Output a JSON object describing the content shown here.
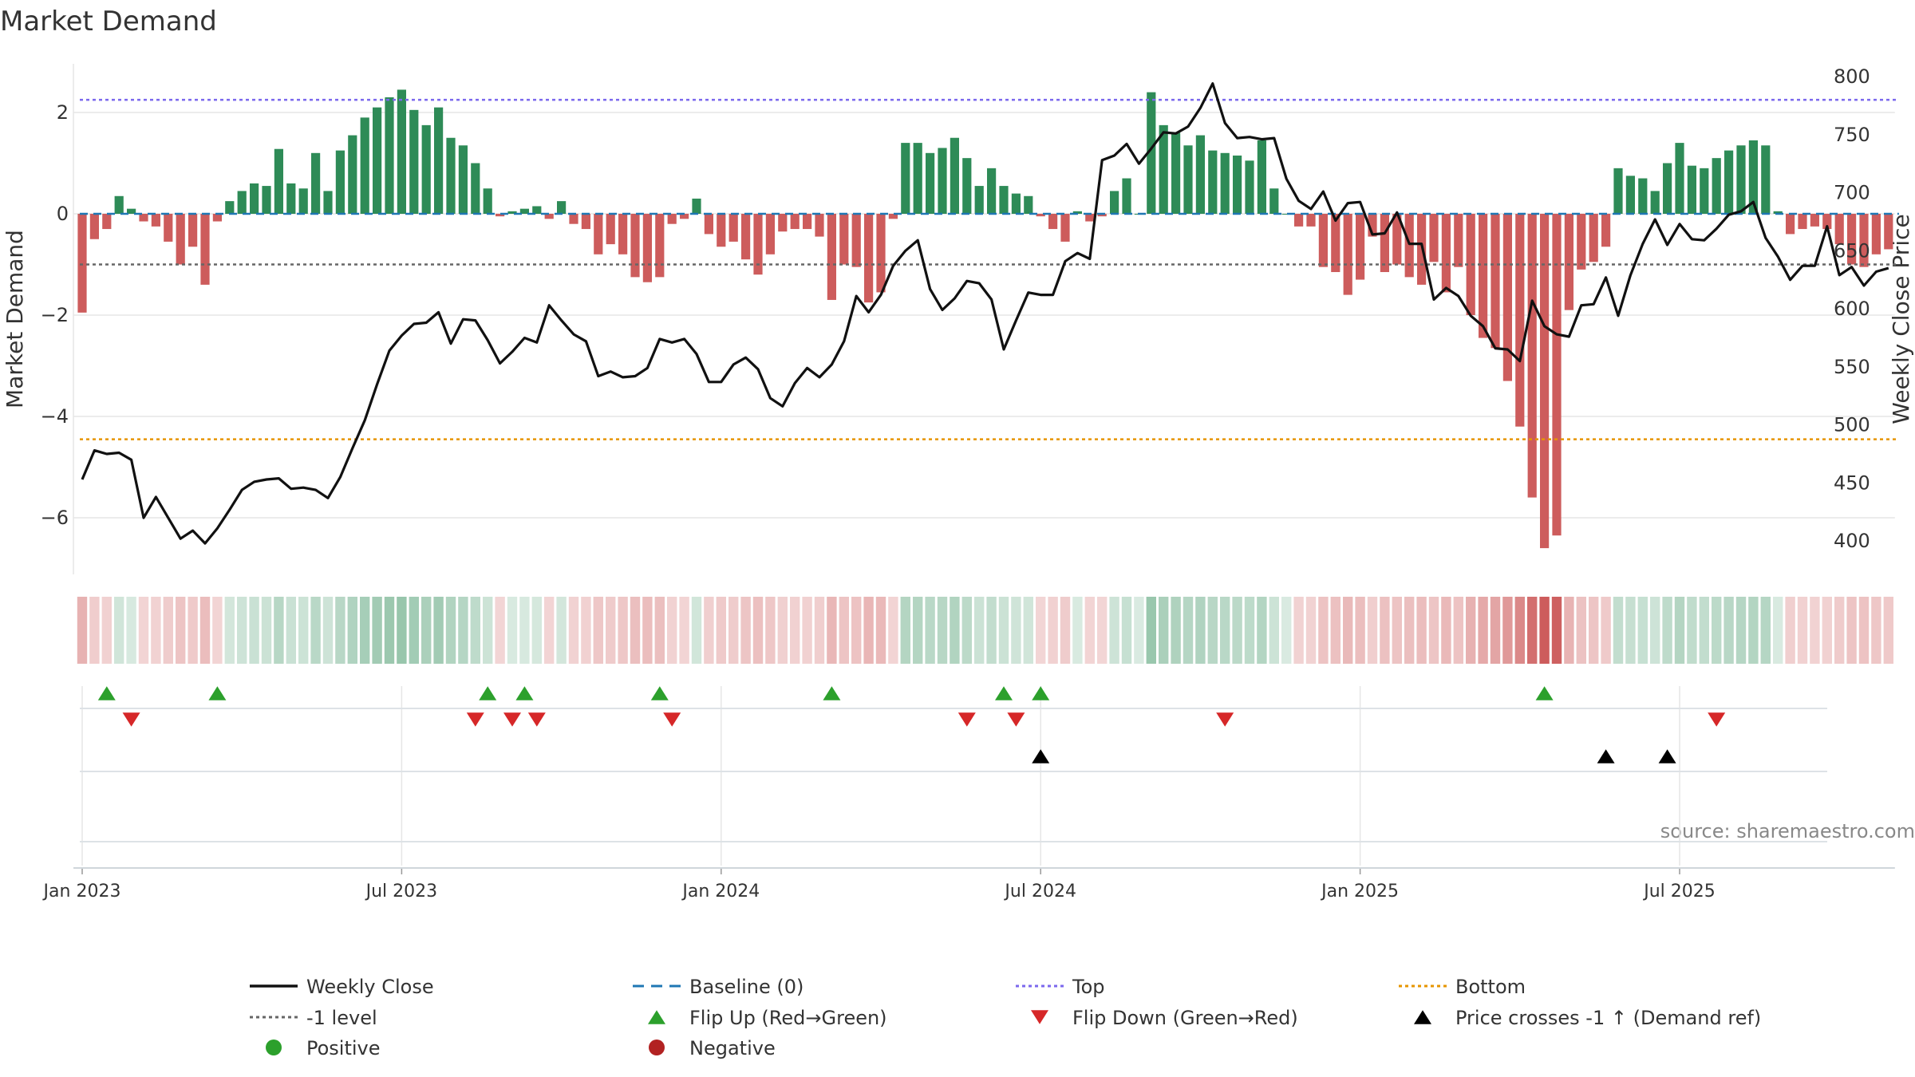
{
  "colors": {
    "positive": "#2e8b57",
    "negative": "#cd5c5c",
    "price": "#111111",
    "top": "#7b68ee",
    "bottom": "#e69500",
    "level": "#666666",
    "baseline": "#1f77b4",
    "flip_up": "#2ca02c",
    "flip_down": "#d62728",
    "cross": "#000000",
    "grid": "#e6e6e6",
    "dot_positive": "#2ca02c",
    "dot_negative": "#b22222"
  },
  "chart_data": {
    "type": "bar+line",
    "title": "Market Demand",
    "ylabel_left": "Market Demand",
    "ylabel_right": "Weekly Close Price",
    "ylim_left": [
      -7.0,
      3.0
    ],
    "ylim_right": [
      360,
      810
    ],
    "left_ticks": [
      2,
      0,
      -2,
      -4,
      -6
    ],
    "left_tick_labels": [
      "2",
      "0",
      "−2",
      "−4",
      "−6"
    ],
    "right_ticks": [
      800,
      750,
      700,
      650,
      600,
      550,
      500,
      450,
      400
    ],
    "x_tick_labels": [
      "Jan 2023",
      "Jul 2023",
      "Jan 2024",
      "Jul 2024",
      "Jan 2025",
      "Jul 2025"
    ],
    "x_tick_weeks": [
      0,
      26,
      52,
      78,
      104,
      130
    ],
    "top_level": 2.25,
    "bottom_level": -4.45,
    "minus_one_level": -1.0,
    "demand": [
      -1.95,
      -0.5,
      -0.3,
      0.35,
      0.1,
      -0.15,
      -0.25,
      -0.55,
      -1.0,
      -0.65,
      -1.4,
      -0.15,
      0.25,
      0.45,
      0.6,
      0.55,
      1.28,
      0.6,
      0.5,
      1.2,
      0.45,
      1.25,
      1.55,
      1.9,
      2.1,
      2.3,
      2.45,
      2.05,
      1.75,
      2.1,
      1.5,
      1.35,
      1.0,
      0.5,
      -0.05,
      0.05,
      0.1,
      0.15,
      -0.1,
      0.25,
      -0.2,
      -0.3,
      -0.8,
      -0.6,
      -0.8,
      -1.25,
      -1.35,
      -1.25,
      -0.2,
      -0.1,
      0.3,
      -0.4,
      -0.65,
      -0.55,
      -0.9,
      -1.2,
      -0.8,
      -0.35,
      -0.3,
      -0.3,
      -0.45,
      -1.7,
      -1.0,
      -1.05,
      -1.75,
      -1.55,
      -0.1,
      1.4,
      1.4,
      1.2,
      1.3,
      1.5,
      1.1,
      0.55,
      0.9,
      0.55,
      0.4,
      0.35,
      -0.05,
      -0.3,
      -0.55,
      0.05,
      -0.15,
      -0.05,
      0.45,
      0.7,
      0.0,
      2.4,
      1.75,
      1.6,
      1.35,
      1.55,
      1.25,
      1.2,
      1.15,
      1.05,
      1.45,
      0.5,
      0.0,
      -0.25,
      -0.25,
      -1.05,
      -1.15,
      -1.6,
      -1.3,
      -0.45,
      -1.15,
      -1.0,
      -1.25,
      -1.4,
      -0.95,
      -1.55,
      -1.05,
      -2.0,
      -2.45,
      -2.65,
      -3.3,
      -4.2,
      -5.6,
      -6.6,
      -6.35,
      -1.9,
      -1.1,
      -0.95,
      -0.65,
      0.9,
      0.75,
      0.7,
      0.45,
      1.0,
      1.4,
      0.95,
      0.9,
      1.1,
      1.25,
      1.35,
      1.45,
      1.35,
      0.05,
      -0.4,
      -0.3,
      -0.25,
      -0.3,
      -0.6,
      -1.0,
      -1.05,
      -0.8,
      -0.7
    ],
    "price": [
      453,
      478,
      475,
      476,
      470,
      420,
      438,
      420,
      402,
      409,
      398,
      411,
      427,
      444,
      451,
      453,
      454,
      445,
      446,
      444,
      437,
      455,
      480,
      504,
      535,
      564,
      577,
      587,
      588,
      597,
      570,
      591,
      590,
      573,
      553,
      563,
      575,
      571,
      603,
      590,
      578,
      572,
      542,
      546,
      541,
      542,
      549,
      574,
      571,
      574,
      561,
      537,
      537,
      552,
      558,
      548,
      523,
      516,
      536,
      549,
      541,
      552,
      572,
      611,
      597,
      612,
      637,
      650,
      659,
      617,
      599,
      609,
      624,
      622,
      608,
      565,
      590,
      614,
      612,
      612,
      641,
      648,
      643,
      728,
      732,
      742,
      725,
      738,
      752,
      751,
      757,
      773,
      794,
      760,
      747,
      748,
      746,
      747,
      712,
      693,
      686,
      701,
      676,
      691,
      692,
      664,
      665,
      683,
      656,
      656,
      608,
      618,
      611,
      594,
      585,
      566,
      565,
      555,
      607,
      585,
      578,
      576,
      603,
      604,
      627,
      594,
      629,
      656,
      677,
      655,
      673,
      660,
      659,
      669,
      681,
      684,
      692,
      661,
      645,
      625,
      637,
      637,
      671,
      629,
      636,
      620,
      632,
      635
    ],
    "flip_up_weeks": [
      2,
      11,
      33,
      36,
      47,
      61,
      75,
      78,
      119
    ],
    "flip_down_weeks": [
      4,
      32,
      35,
      37,
      48,
      72,
      76,
      93,
      133
    ],
    "price_cross_weeks": [
      78,
      124,
      129
    ],
    "legend": [
      {
        "label": "Weekly Close",
        "symbol": "line",
        "color": "#111111"
      },
      {
        "label": "Baseline (0)",
        "symbol": "dash",
        "color": "#1f77b4"
      },
      {
        "label": "Top",
        "symbol": "dot",
        "color": "#7b68ee"
      },
      {
        "label": "Bottom",
        "symbol": "dot",
        "color": "#e69500"
      },
      {
        "label": "-1 level",
        "symbol": "dot",
        "color": "#666666"
      },
      {
        "label": "Flip Up (Red→Green)",
        "symbol": "tri-up",
        "color": "#2ca02c"
      },
      {
        "label": "Flip Down (Green→Red)",
        "symbol": "tri-down",
        "color": "#d62728"
      },
      {
        "label": "Price crosses -1 ↑ (Demand ref)",
        "symbol": "tri-up",
        "color": "#000000"
      },
      {
        "label": "Positive",
        "symbol": "circle",
        "color": "#2ca02c"
      },
      {
        "label": "Negative",
        "symbol": "circle",
        "color": "#b22222"
      }
    ]
  },
  "source_note": "source: sharemaestro.com"
}
